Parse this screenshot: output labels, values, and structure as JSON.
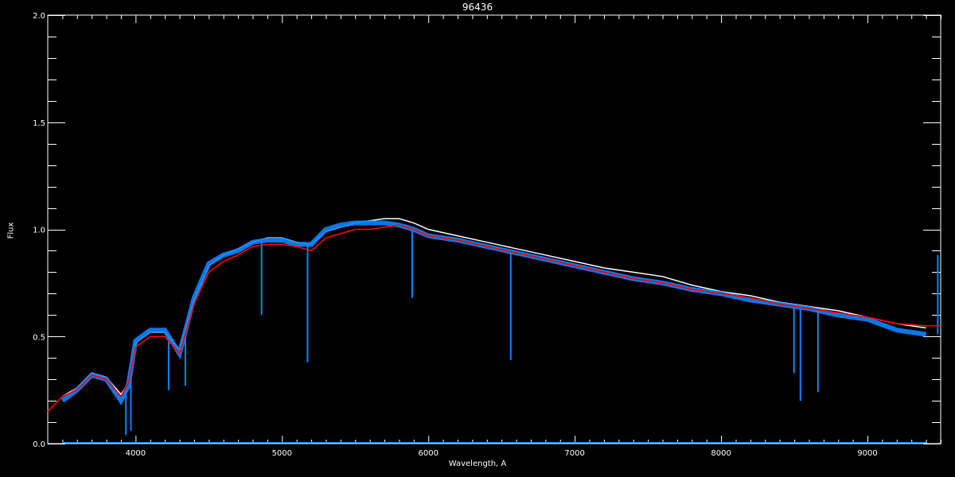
{
  "chart_data": {
    "type": "line",
    "title": "96436",
    "xlabel": "Wavelength, A",
    "ylabel": "Flux",
    "xlim": [
      3400,
      9500
    ],
    "ylim": [
      0.0,
      2.0
    ],
    "x_major_ticks": [
      4000,
      5000,
      6000,
      7000,
      8000,
      9000
    ],
    "x_tick_labels": [
      "4000",
      "5000",
      "6000",
      "7000",
      "8000",
      "9000"
    ],
    "y_major_ticks": [
      0.0,
      0.5,
      1.0,
      1.5,
      2.0
    ],
    "y_tick_labels": [
      "0.0",
      "0.5",
      "1.0",
      "1.5",
      "2.0"
    ],
    "grid": false,
    "background": "#000000",
    "x": [
      3400,
      3500,
      3600,
      3700,
      3800,
      3900,
      3950,
      4000,
      4100,
      4200,
      4300,
      4400,
      4500,
      4600,
      4700,
      4800,
      4900,
      5000,
      5100,
      5200,
      5300,
      5400,
      5500,
      5600,
      5700,
      5800,
      5900,
      6000,
      6200,
      6400,
      6600,
      6800,
      7000,
      7200,
      7400,
      7600,
      7800,
      8000,
      8200,
      8400,
      8600,
      8800,
      9000,
      9200,
      9400,
      9500
    ],
    "series": [
      {
        "color": "#ffffff",
        "values": [
          null,
          0.22,
          0.26,
          0.33,
          0.31,
          0.23,
          0.28,
          0.47,
          0.52,
          0.52,
          0.44,
          0.67,
          0.83,
          0.88,
          0.91,
          0.94,
          0.96,
          0.96,
          0.94,
          0.93,
          0.99,
          1.01,
          1.03,
          1.04,
          1.05,
          1.05,
          1.03,
          1.0,
          0.97,
          0.94,
          0.91,
          0.88,
          0.85,
          0.82,
          0.8,
          0.78,
          0.74,
          0.71,
          0.69,
          0.66,
          0.64,
          0.62,
          0.59,
          0.56,
          0.54,
          null
        ]
      },
      {
        "color": "#0a84ff",
        "values": [
          null,
          0.2,
          0.25,
          0.32,
          0.3,
          0.2,
          0.27,
          0.48,
          0.53,
          0.53,
          0.42,
          0.68,
          0.84,
          0.88,
          0.9,
          0.94,
          0.95,
          0.95,
          0.93,
          0.93,
          1.0,
          1.02,
          1.03,
          1.03,
          1.03,
          1.02,
          1.0,
          0.97,
          0.95,
          0.92,
          0.89,
          0.86,
          0.83,
          0.8,
          0.77,
          0.75,
          0.72,
          0.7,
          0.67,
          0.65,
          0.63,
          0.6,
          0.58,
          0.53,
          0.51,
          null
        ]
      },
      {
        "color": "#ff0000",
        "values": [
          0.15,
          0.22,
          0.25,
          0.32,
          0.3,
          0.22,
          0.28,
          0.45,
          0.5,
          0.5,
          0.42,
          0.65,
          0.8,
          0.85,
          0.88,
          0.92,
          0.93,
          0.93,
          0.92,
          0.9,
          0.96,
          0.98,
          1.0,
          1.0,
          1.01,
          1.02,
          1.0,
          0.97,
          0.95,
          0.92,
          0.89,
          0.86,
          0.83,
          0.8,
          0.77,
          0.75,
          0.72,
          0.7,
          0.68,
          0.65,
          0.63,
          0.61,
          0.59,
          0.56,
          0.55,
          0.55
        ]
      },
      {
        "color": "#0a84ff",
        "values": [
          null,
          0.005,
          0.005,
          0.005,
          0.005,
          0.005,
          0.005,
          0.005,
          0.005,
          0.005,
          0.005,
          0.005,
          0.005,
          0.005,
          0.005,
          0.005,
          0.005,
          0.005,
          0.005,
          0.005,
          0.005,
          0.005,
          0.005,
          0.005,
          0.005,
          0.005,
          0.005,
          0.005,
          0.005,
          0.005,
          0.005,
          0.005,
          0.005,
          0.005,
          0.005,
          0.005,
          0.005,
          0.005,
          0.005,
          0.005,
          0.005,
          0.005,
          0.005,
          0.005,
          0.005,
          null
        ]
      }
    ],
    "absorption_lines": [
      {
        "wavelength": 3934,
        "flux": 0.04
      },
      {
        "wavelength": 3968,
        "flux": 0.06
      },
      {
        "wavelength": 4226,
        "flux": 0.25
      },
      {
        "wavelength": 4340,
        "flux": 0.27
      },
      {
        "wavelength": 4861,
        "flux": 0.6
      },
      {
        "wavelength": 5175,
        "flux": 0.38
      },
      {
        "wavelength": 5890,
        "flux": 0.68
      },
      {
        "wavelength": 6563,
        "flux": 0.39
      },
      {
        "wavelength": 8498,
        "flux": 0.33
      },
      {
        "wavelength": 8542,
        "flux": 0.2
      },
      {
        "wavelength": 8662,
        "flux": 0.24
      },
      {
        "wavelength": 9480,
        "flux": 0.88
      }
    ]
  }
}
